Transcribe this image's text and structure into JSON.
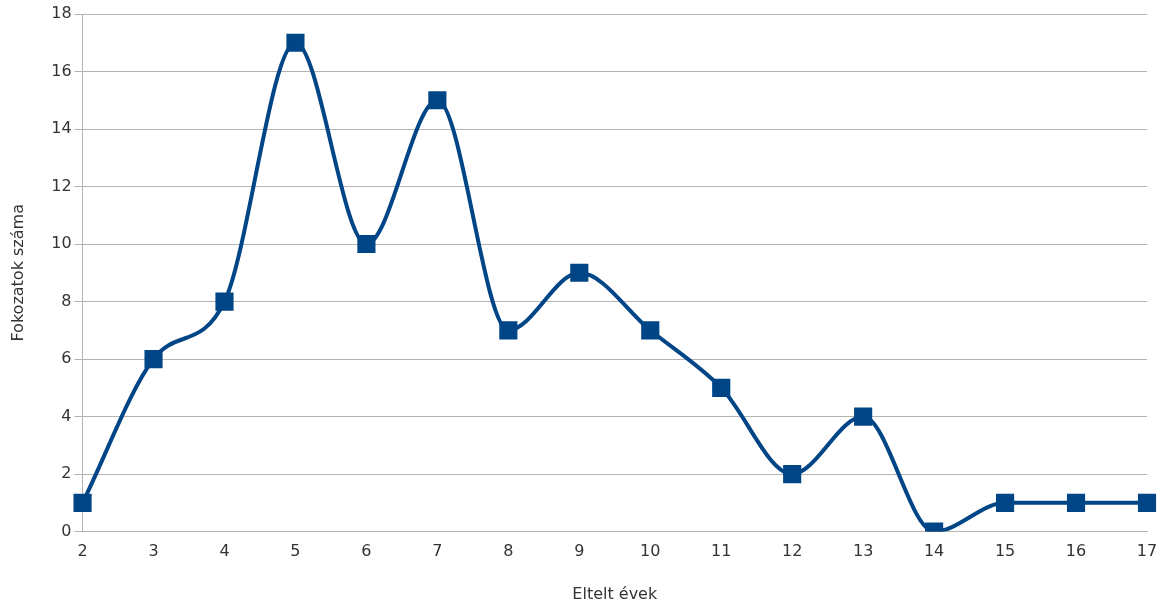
{
  "chart_data": {
    "type": "line",
    "xlabel": "Eltelt évek",
    "ylabel": "Fokozatok száma",
    "categories": [
      "2",
      "3",
      "4",
      "5",
      "6",
      "7",
      "8",
      "9",
      "10",
      "11",
      "12",
      "13",
      "14",
      "15",
      "16",
      "17"
    ],
    "series": [
      {
        "color": "#004586",
        "values": [
          1,
          6,
          8,
          17,
          10,
          15,
          7,
          9,
          7,
          5,
          2,
          4,
          0,
          1,
          1,
          1
        ]
      }
    ],
    "ylim": [
      0,
      18
    ],
    "yticks": [
      0,
      2,
      4,
      6,
      8,
      10,
      12,
      14,
      16,
      18
    ],
    "grid": "y",
    "legend": false,
    "marker": "square",
    "line_style": "solid"
  }
}
